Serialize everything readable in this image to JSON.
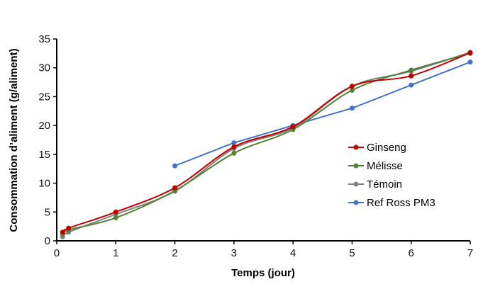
{
  "chart_data": {
    "type": "line",
    "title": "",
    "xlabel": "Temps (jour)",
    "ylabel": "Consommation d’aliment (g/aliment)",
    "xlim": [
      0,
      7
    ],
    "ylim": [
      0,
      35
    ],
    "xticks": [
      "0",
      "1",
      "2",
      "3",
      "4",
      "5",
      "6",
      "7"
    ],
    "yticks": [
      "0",
      "5",
      "10",
      "15",
      "20",
      "25",
      "30",
      "35"
    ],
    "grid": false,
    "legend_position": "right-middle",
    "series": [
      {
        "name": "Ginseng",
        "color": "#C00000",
        "smooth": true,
        "x": [
          0.1,
          0.2,
          1,
          2,
          3,
          4,
          5,
          6,
          7
        ],
        "y": [
          1.5,
          2.2,
          5.0,
          9.2,
          16.3,
          19.8,
          26.8,
          28.6,
          32.6
        ]
      },
      {
        "name": "Mélisse",
        "color": "#548235",
        "smooth": true,
        "x": [
          0.1,
          0.2,
          1,
          2,
          3,
          4,
          5,
          6,
          7
        ],
        "y": [
          1.2,
          1.9,
          4.0,
          8.7,
          15.2,
          19.3,
          26.1,
          29.6,
          32.5
        ]
      },
      {
        "name": "Témoin",
        "color": "#808080",
        "smooth": true,
        "x": [
          0.1,
          0.2,
          1,
          2,
          3,
          4,
          5,
          6,
          7
        ],
        "y": [
          0.7,
          1.5,
          4.6,
          8.6,
          16.0,
          19.6,
          26.8,
          29.4,
          32.7
        ]
      },
      {
        "name": "Ref Ross PM3",
        "color": "#4472C4",
        "smooth": false,
        "x": [
          2,
          3,
          4,
          5,
          6,
          7
        ],
        "y": [
          13,
          17,
          20,
          23,
          27,
          31
        ]
      }
    ]
  }
}
